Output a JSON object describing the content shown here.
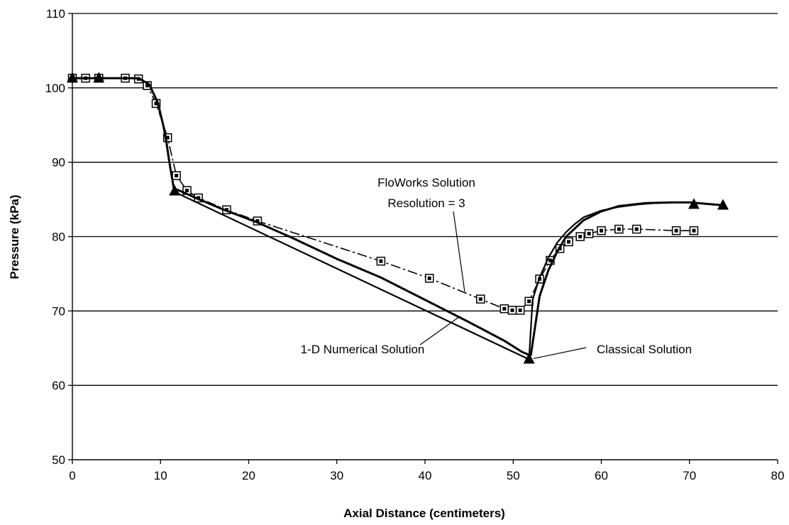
{
  "chart_data": {
    "type": "line",
    "xlabel": "Axial Distance (centimeters)",
    "ylabel": "Pressure (kPa)",
    "xlim": [
      0,
      80
    ],
    "ylim": [
      50,
      110
    ],
    "xticks": [
      "0",
      "10",
      "20",
      "30",
      "40",
      "50",
      "60",
      "70",
      "80"
    ],
    "yticks": [
      "50",
      "60",
      "70",
      "80",
      "90",
      "100",
      "110"
    ],
    "grid": "horizontal",
    "legend": "none",
    "series": [
      {
        "name": "FloWorks Solution Resolution = 3",
        "style": "dash-dot line with open square markers",
        "x": [
          0,
          1.5,
          3,
          6,
          7.5,
          8.5,
          9.5,
          10.8,
          11.8,
          13,
          14.3,
          17.5,
          21,
          35,
          40.5,
          46.3,
          49,
          49.9,
          50.8,
          51.8,
          53,
          54.2,
          55.3,
          56.3,
          57.6,
          58.6,
          60,
          62,
          64,
          68.5,
          70.5
        ],
        "y": [
          101.3,
          101.3,
          101.3,
          101.3,
          101.2,
          100.3,
          97.9,
          93.3,
          88.2,
          86.2,
          85.2,
          83.6,
          82.1,
          76.7,
          74.4,
          71.6,
          70.3,
          70.1,
          70.1,
          71.3,
          74.3,
          76.8,
          78.4,
          79.3,
          80.0,
          80.4,
          80.8,
          81.0,
          81.0,
          80.8,
          80.8
        ]
      },
      {
        "name": "1-D Numerical Solution",
        "style": "dotted line",
        "x": [
          0,
          7.5,
          8.7,
          9.7,
          10.5,
          11.0,
          11.5,
          12.5,
          14,
          17,
          21,
          25,
          30,
          35,
          40,
          45,
          49,
          51,
          52,
          53,
          54,
          55,
          56,
          58,
          60,
          62,
          65,
          68,
          70,
          74
        ],
        "y": [
          101.3,
          101.3,
          100.5,
          98,
          94,
          90,
          86.5,
          86.0,
          85.2,
          83.7,
          81.9,
          79.8,
          77.0,
          74.5,
          71.5,
          68.5,
          66.0,
          64.5,
          64.0,
          72,
          75.5,
          78.0,
          80.0,
          82.2,
          83.4,
          84.1,
          84.5,
          84.6,
          84.6,
          84.2
        ]
      },
      {
        "name": "Classical Solution",
        "style": "solid line with filled triangle markers",
        "x": [
          0,
          3,
          7.5,
          8.7,
          9.5,
          10.2,
          10.7,
          11.2,
          11.6,
          51.8,
          52.2,
          53,
          54,
          55,
          56,
          57,
          58,
          60,
          62,
          64,
          66,
          68,
          70.5
        ],
        "y": [
          101.3,
          101.3,
          101.3,
          100.5,
          98.5,
          95.5,
          92.5,
          88.5,
          86.0,
          63.5,
          71.5,
          74.5,
          77.2,
          79.2,
          80.6,
          81.7,
          82.6,
          83.5,
          84.0,
          84.3,
          84.5,
          84.6,
          84.6
        ],
        "markers_x": [
          0,
          3,
          11.6,
          51.8,
          70.5,
          73.8
        ],
        "markers_y": [
          101.3,
          101.3,
          86.1,
          63.5,
          84.3,
          84.2
        ]
      }
    ],
    "annotations": [
      {
        "lines": [
          "FloWorks Solution",
          "Resolution = 3"
        ],
        "target_x": 44.5,
        "target_y": 72.6
      },
      {
        "text": "1-D Numerical Solution",
        "target_x": 44,
        "target_y": 69.3
      },
      {
        "text": "Classical Solution",
        "target_x": 51.8,
        "target_y": 63.5
      }
    ]
  }
}
